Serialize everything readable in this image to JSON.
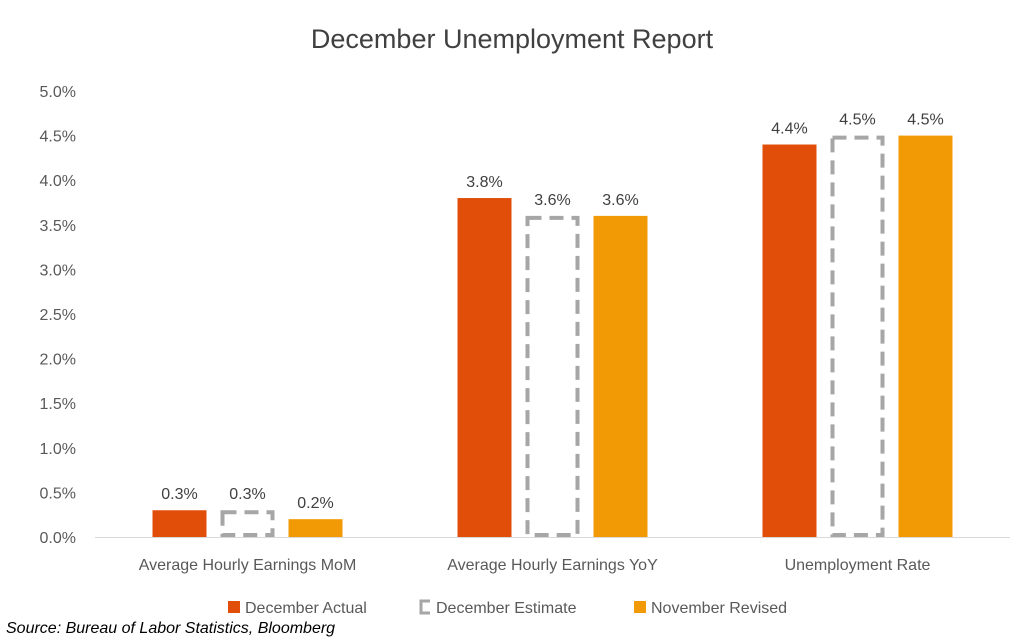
{
  "chart_data": {
    "type": "bar",
    "title": "December Unemployment Report",
    "categories": [
      "Average Hourly Earnings MoM",
      "Average Hourly Earnings YoY",
      "Unemployment Rate"
    ],
    "series": [
      {
        "name": "December Actual",
        "values": [
          0.3,
          3.8,
          4.4
        ],
        "labels": [
          "0.3%",
          "3.8%",
          "4.4%"
        ],
        "color": "#E04E0A",
        "style": "solid"
      },
      {
        "name": "December Estimate",
        "values": [
          0.3,
          3.6,
          4.5
        ],
        "labels": [
          "0.3%",
          "3.6%",
          "4.5%"
        ],
        "color": "#A6A6A6",
        "style": "dashed-outline"
      },
      {
        "name": "November Revised",
        "values": [
          0.2,
          3.6,
          4.5
        ],
        "labels": [
          "0.2%",
          "3.6%",
          "4.5%"
        ],
        "color": "#F29A06",
        "style": "solid"
      }
    ],
    "ylim": [
      0,
      5.0
    ],
    "yticks": [
      "0.0%",
      "0.5%",
      "1.0%",
      "1.5%",
      "2.0%",
      "2.5%",
      "3.0%",
      "3.5%",
      "4.0%",
      "4.5%",
      "5.0%"
    ],
    "grid": false,
    "legend_position": "bottom"
  },
  "source": "Source: Bureau of Labor Statistics, Bloomberg"
}
